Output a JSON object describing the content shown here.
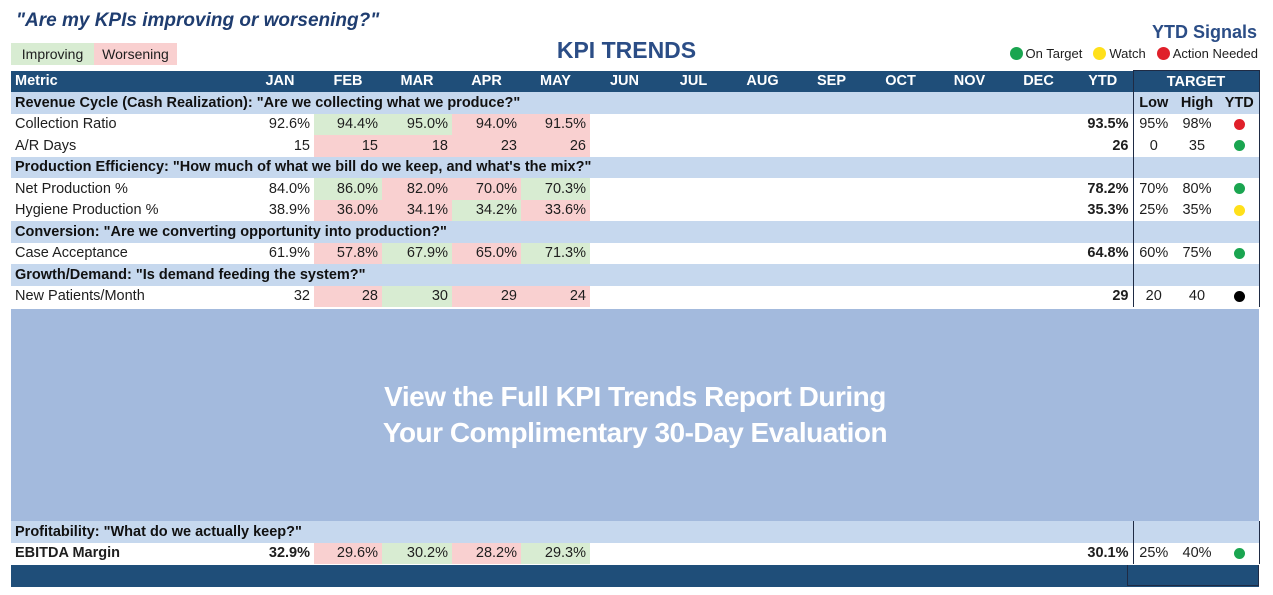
{
  "question": "\"Are my KPIs improving or worsening?\"",
  "title": "KPI TRENDS",
  "legend": {
    "improving": "Improving",
    "worsening": "Worsening"
  },
  "ytd_signals": {
    "title": "YTD Signals",
    "items": [
      {
        "label": "On Target",
        "color": "#1aa550"
      },
      {
        "label": "Watch",
        "color": "#ffe01a"
      },
      {
        "label": "Action Needed",
        "color": "#e0202a"
      }
    ]
  },
  "table": {
    "metric_header": "Metric",
    "months": [
      "JAN",
      "FEB",
      "MAR",
      "APR",
      "MAY",
      "JUN",
      "JUL",
      "AUG",
      "SEP",
      "OCT",
      "NOV",
      "DEC"
    ],
    "ytd_header": "YTD",
    "target_header": "TARGET",
    "low_header": "Low",
    "high_header": "High",
    "target_ytd_header": "YTD"
  },
  "sections": [
    {
      "label": "Revenue Cycle (Cash Realization):  \"Are we collecting what we produce?\"",
      "rows": [
        {
          "name": "Collection Ratio",
          "values": [
            "92.6%",
            "94.4%",
            "95.0%",
            "94.0%",
            "91.5%"
          ],
          "status": [
            "",
            "imp",
            "imp",
            "wor",
            "wor"
          ],
          "ytd": "93.5%",
          "low": "95%",
          "high": "98%",
          "signal": "#e0202a"
        },
        {
          "name": "A/R Days",
          "values": [
            "15",
            "15",
            "18",
            "23",
            "26"
          ],
          "status": [
            "",
            "wor",
            "wor",
            "wor",
            "wor"
          ],
          "ytd": "26",
          "low": "0",
          "high": "35",
          "signal": "#1aa550"
        }
      ]
    },
    {
      "label": "Production Efficiency:  \"How much of what we bill do we keep, and what's the mix?\"",
      "rows": [
        {
          "name": "Net Production %",
          "values": [
            "84.0%",
            "86.0%",
            "82.0%",
            "70.0%",
            "70.3%"
          ],
          "status": [
            "",
            "imp",
            "wor",
            "wor",
            "imp"
          ],
          "ytd": "78.2%",
          "low": "70%",
          "high": "80%",
          "signal": "#1aa550"
        },
        {
          "name": "Hygiene Production %",
          "values": [
            "38.9%",
            "36.0%",
            "34.1%",
            "34.2%",
            "33.6%"
          ],
          "status": [
            "",
            "wor",
            "wor",
            "imp",
            "wor"
          ],
          "ytd": "35.3%",
          "low": "25%",
          "high": "35%",
          "signal": "#ffe01a"
        }
      ]
    },
    {
      "label": "Conversion:  \"Are we converting opportunity into production?\"",
      "rows": [
        {
          "name": "Case Acceptance",
          "values": [
            "61.9%",
            "57.8%",
            "67.9%",
            "65.0%",
            "71.3%"
          ],
          "status": [
            "",
            "wor",
            "imp",
            "wor",
            "imp"
          ],
          "ytd": "64.8%",
          "low": "60%",
          "high": "75%",
          "signal": "#1aa550"
        }
      ]
    },
    {
      "label": "Growth/Demand:  \"Is demand feeding the system?\"",
      "rows": [
        {
          "name": "New Patients/Month",
          "values": [
            "32",
            "28",
            "30",
            "29",
            "24"
          ],
          "status": [
            "",
            "wor",
            "imp",
            "wor",
            "wor"
          ],
          "ytd": "29",
          "low": "20",
          "high": "40",
          "signal": "#000000"
        }
      ]
    }
  ],
  "overlay": {
    "line1": "View the Full KPI Trends Report During",
    "line2": "Your Complimentary 30-Day Evaluation"
  },
  "profitability": {
    "label": "Profitability:  \"What do we actually keep?\"",
    "row": {
      "name": "EBITDA Margin",
      "values": [
        "32.9%",
        "29.6%",
        "30.2%",
        "28.2%",
        "29.3%"
      ],
      "status": [
        "",
        "wor",
        "imp",
        "wor",
        "imp"
      ],
      "ytd": "30.1%",
      "low": "25%",
      "high": "40%",
      "signal": "#1aa550"
    }
  }
}
